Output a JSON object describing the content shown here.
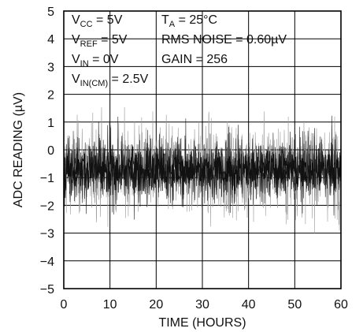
{
  "chart_data": {
    "type": "line",
    "title": "",
    "xlabel": "TIME (HOURS)",
    "ylabel": "ADC READING (µV)",
    "xlim": [
      0,
      60
    ],
    "ylim": [
      -5,
      5
    ],
    "x_ticks": [
      "0",
      "10",
      "20",
      "30",
      "40",
      "50",
      "60"
    ],
    "y_ticks": [
      "5",
      "4",
      "3",
      "2",
      "1",
      "0",
      "−1",
      "−2",
      "−3",
      "−4",
      "−5"
    ],
    "grid": true,
    "noise_band": {
      "mean": -0.7,
      "rms": 0.6,
      "typical_min": -2.6,
      "typical_max": 1.2,
      "peak_max": 1.6,
      "peak_min": -3.0
    },
    "conditions": {
      "vcc": {
        "base": "V",
        "sub": "CC",
        "rest": " = 5V"
      },
      "vref": {
        "base": "V",
        "sub": "REF",
        "rest": " = 5V"
      },
      "vin": {
        "base": "V",
        "sub": "IN",
        "rest": " = 0V"
      },
      "vincm": {
        "base": "V",
        "sub": "IN(CM)",
        "rest": " = 2.5V"
      },
      "ta": {
        "base": "T",
        "sub": "A",
        "rest": " = 25°C"
      },
      "rms_noise": "RMS NOISE = 0.60µV",
      "gain": "GAIN = 256"
    },
    "colors": {
      "trace_dark": "#111111",
      "trace_light": "#9a9a9a",
      "grid": "#000000"
    }
  }
}
